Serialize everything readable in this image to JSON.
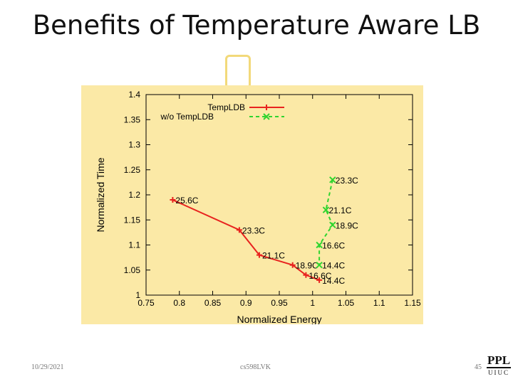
{
  "slide": {
    "title": "Benefits of Temperature Aware LB",
    "date": "10/29/2021",
    "course": "cs598LVK",
    "page_number": "45",
    "logo_top": "PPL",
    "logo_bottom": "UIUC"
  },
  "colors": {
    "chart_background": "#fbe9a6",
    "temp_ldb": "#e8231f",
    "wo_temp_ldb": "#2fd42f"
  },
  "chart_data": {
    "type": "line",
    "xlabel": "Normalized Energy",
    "ylabel": "Normalized Time",
    "xlim": [
      0.75,
      1.15
    ],
    "ylim": [
      1.0,
      1.4
    ],
    "xticks": [
      "0.75",
      "0.8",
      "0.85",
      "0.9",
      "0.95",
      "1",
      "1.05",
      "1.1",
      "1.15"
    ],
    "yticks": [
      "1",
      "1.05",
      "1.1",
      "1.15",
      "1.2",
      "1.25",
      "1.3",
      "1.35",
      "1.4"
    ],
    "grid": false,
    "legend_position": "top-left",
    "series": [
      {
        "name": "TempLDB",
        "line_style": "solid",
        "marker": "plus",
        "x": [
          0.79,
          0.89,
          0.92,
          0.97,
          0.99,
          1.01
        ],
        "y": [
          1.19,
          1.13,
          1.08,
          1.06,
          1.04,
          1.03
        ],
        "point_labels": [
          "25.6C",
          "23.3C",
          "21.1C",
          "18.9C",
          "16.6C",
          "14.4C"
        ]
      },
      {
        "name": "w/o TempLDB",
        "line_style": "dashed",
        "marker": "x",
        "x": [
          1.03,
          1.02,
          1.03,
          1.01,
          1.01
        ],
        "y": [
          1.23,
          1.17,
          1.14,
          1.1,
          1.06
        ],
        "point_labels": [
          "23.3C",
          "21.1C",
          "18.9C",
          "16.6C",
          "14.4C"
        ]
      }
    ]
  }
}
